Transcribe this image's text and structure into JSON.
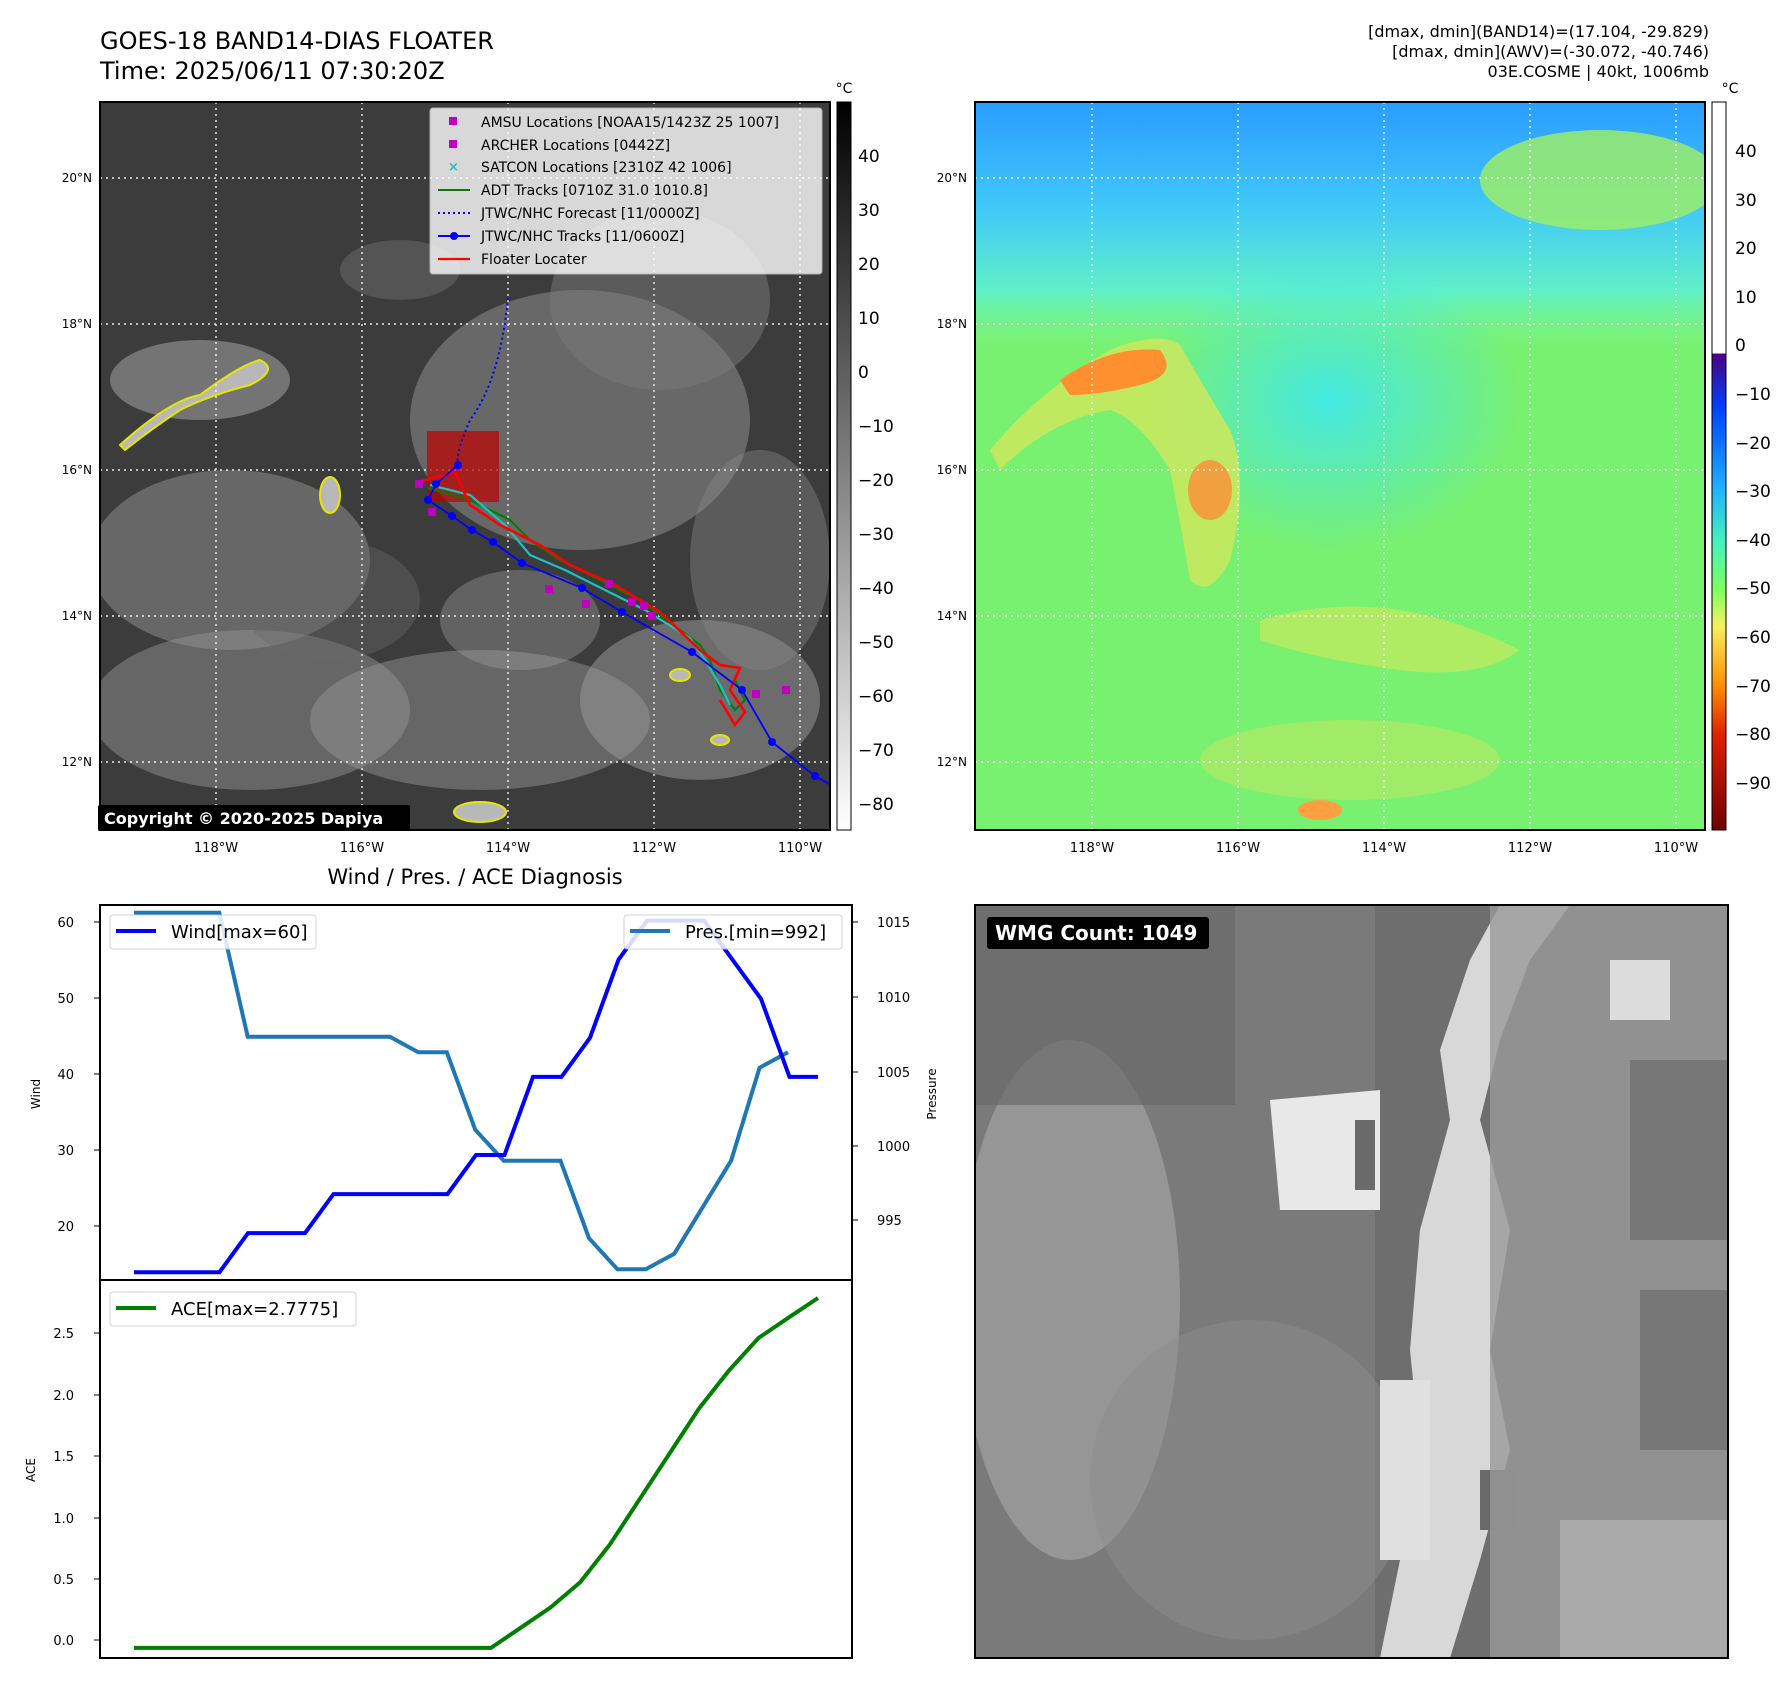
{
  "header": {
    "title_line1": "GOES-18 BAND14-DIAS FLOATER",
    "title_line2": "Time: 2025/06/11 07:30:20Z",
    "info_line1": "[dmax, dmin](BAND14)=(17.104, -29.829)",
    "info_line2": "[dmax, dmin](AWV)=(-30.072, -40.746)",
    "info_line3": "03E.COSME | 40kt, 1006mb"
  },
  "map_axes": {
    "lat_ticks": [
      "20°N",
      "18°N",
      "16°N",
      "14°N",
      "12°N"
    ],
    "lon_ticks": [
      "118°W",
      "116°W",
      "114°W",
      "112°W",
      "110°W"
    ]
  },
  "colorbar_ir": {
    "unit": "°C",
    "ticks": [
      "40",
      "30",
      "20",
      "10",
      "0",
      "−10",
      "−20",
      "−30",
      "−40",
      "−50",
      "−60",
      "−70",
      "−80"
    ]
  },
  "colorbar_wv": {
    "unit": "°C",
    "ticks": [
      "40",
      "30",
      "20",
      "10",
      "0",
      "−10",
      "−20",
      "−30",
      "−40",
      "−50",
      "−60",
      "−70",
      "−80",
      "−90"
    ]
  },
  "legend": {
    "items": [
      {
        "label": "AMSU Locations [NOAA15/1423Z 25 1007]",
        "color": "#c000c0"
      },
      {
        "label": "ARCHER Locations [0442Z]",
        "color": "#c000c0"
      },
      {
        "label": "SATCON Locations [2310Z 42 1006]",
        "color": "#20c0c0"
      },
      {
        "label": "ADT Tracks [0710Z 31.0 1010.8]",
        "color": "#008000"
      },
      {
        "label": "JTWC/NHC Forecast [11/0000Z]",
        "color": "#0000ff"
      },
      {
        "label": "JTWC/NHC Tracks [11/0600Z]",
        "color": "#0000ff"
      },
      {
        "label": "Floater Locater",
        "color": "#ff0000"
      }
    ]
  },
  "copyright": "Copyright © 2020-2025 Dapiya",
  "wmg_label": "WMG Count: 1049",
  "diag": {
    "title": "Wind / Pres. / ACE Diagnosis",
    "wind_label": "Wind",
    "pressure_label": "Pressure",
    "ace_label": "ACE",
    "wind_legend": "Wind[max=60]",
    "pres_legend": "Pres.[min=992]",
    "ace_legend": "ACE[max=2.7775]",
    "wind_ticks": [
      "60",
      "50",
      "40",
      "30",
      "20"
    ],
    "pres_ticks": [
      "1015",
      "1010",
      "1005",
      "1000",
      "995"
    ],
    "ace_ticks": [
      "2.5",
      "2.0",
      "1.5",
      "1.0",
      "0.5",
      "0.0"
    ]
  },
  "chart_data": [
    {
      "type": "line",
      "title": "Wind / Pres. / ACE Diagnosis",
      "ylabel": "Wind",
      "ylim": [
        14,
        62
      ],
      "series": [
        {
          "name": "Wind[max=60]",
          "color": "#0000ff",
          "values": [
            15,
            15,
            15,
            15,
            20,
            20,
            20,
            25,
            25,
            25,
            25,
            25,
            30,
            30,
            40,
            40,
            45,
            55,
            60,
            60,
            60,
            55,
            50,
            40,
            40
          ]
        }
      ]
    },
    {
      "type": "line",
      "ylabel": "Pressure",
      "ylim": [
        991.3,
        1015.5
      ],
      "series": [
        {
          "name": "Pres.[min=992]",
          "color": "#1f77b4",
          "values": [
            1015,
            1015,
            1015,
            1015,
            1007,
            1007,
            1007,
            1007,
            1007,
            1007,
            1006,
            1006,
            1001,
            999,
            999,
            999,
            994,
            992,
            992,
            993,
            996,
            999,
            1005,
            1006
          ]
        }
      ]
    },
    {
      "type": "line",
      "ylabel": "ACE",
      "ylim": [
        -0.08,
        2.92
      ],
      "series": [
        {
          "name": "ACE[max=2.7775]",
          "color": "#008000",
          "values": [
            0,
            0,
            0,
            0,
            0,
            0,
            0,
            0,
            0,
            0,
            0,
            0,
            0,
            0.16,
            0.32,
            0.52,
            0.82,
            1.18,
            1.54,
            1.9,
            2.2,
            2.46,
            2.62,
            2.7775
          ]
        }
      ]
    }
  ]
}
